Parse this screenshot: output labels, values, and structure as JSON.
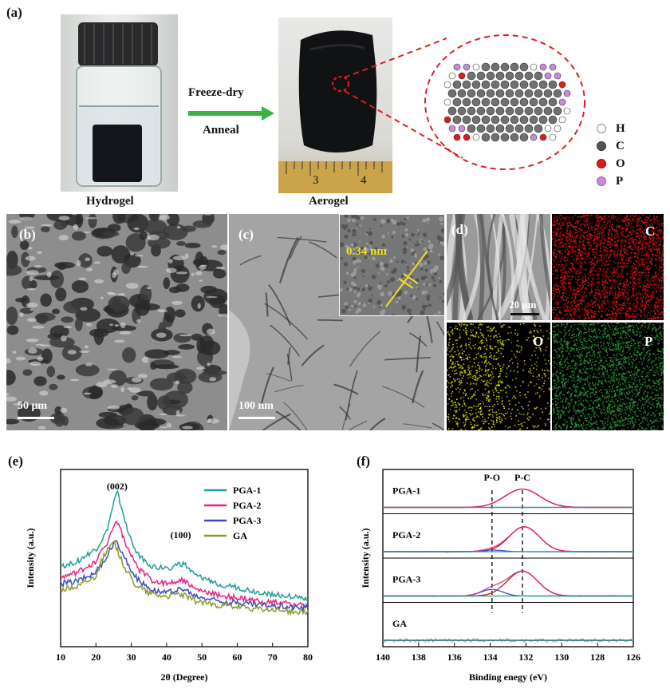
{
  "panel_a": {
    "label": "(a)",
    "hydrogel_caption": "Hydrogel",
    "aerogel_caption": "Aerogel",
    "arrow_top": "Freeze-dry",
    "arrow_bottom": "Anneal",
    "ruler_marks": [
      "3",
      "4"
    ],
    "legend": [
      {
        "symbol": "H",
        "color": "#ffffff"
      },
      {
        "symbol": "C",
        "color": "#555555"
      },
      {
        "symbol": "O",
        "color": "#e01b1b"
      },
      {
        "symbol": "P",
        "color": "#c98bd8"
      }
    ]
  },
  "panel_b": {
    "label": "(b)",
    "scale": "50 μm"
  },
  "panel_c": {
    "label": "(c)",
    "scale": "100 nm",
    "inset_spacing": "0.34 nm"
  },
  "panel_d": {
    "label": "(d)",
    "scale": "20 μm",
    "maps": [
      {
        "element": "C",
        "color": "#d11"
      },
      {
        "element": "O",
        "color": "#e5e500"
      },
      {
        "element": "P",
        "color": "#2a9a35"
      }
    ]
  },
  "panel_e": {
    "label": "(e)"
  },
  "panel_f": {
    "label": "(f)"
  },
  "chart_data": [
    {
      "id": "e",
      "type": "line",
      "title": "",
      "xlabel": "2θ (Degree)",
      "ylabel": "Intensity (a.u.)",
      "xlim": [
        10,
        80
      ],
      "xticks": [
        "10",
        "20",
        "30",
        "40",
        "50",
        "60",
        "70",
        "80"
      ],
      "peak_labels": [
        {
          "text": "(002)",
          "x": 26
        },
        {
          "text": "(100)",
          "x": 44
        }
      ],
      "series": [
        {
          "name": "PGA-1",
          "color": "#1a9e9a",
          "x": [
            10,
            15,
            20,
            23,
            25,
            26,
            27,
            29,
            32,
            36,
            40,
            43,
            45,
            48,
            55,
            65,
            80
          ],
          "y": [
            0.7,
            0.75,
            0.85,
            1.0,
            1.25,
            1.35,
            1.25,
            1.0,
            0.8,
            0.7,
            0.68,
            0.72,
            0.72,
            0.62,
            0.55,
            0.48,
            0.42
          ]
        },
        {
          "name": "PGA-2",
          "color": "#e8227e",
          "x": [
            10,
            15,
            20,
            23,
            25,
            26,
            27,
            29,
            32,
            36,
            40,
            43,
            45,
            48,
            55,
            65,
            80
          ],
          "y": [
            0.6,
            0.65,
            0.75,
            0.9,
            1.05,
            1.1,
            1.02,
            0.85,
            0.68,
            0.58,
            0.55,
            0.58,
            0.58,
            0.5,
            0.45,
            0.4,
            0.36
          ]
        },
        {
          "name": "PGA-3",
          "color": "#3b4fb5",
          "x": [
            10,
            15,
            20,
            23,
            25,
            26,
            27,
            29,
            32,
            36,
            40,
            43,
            45,
            48,
            55,
            65,
            80
          ],
          "y": [
            0.55,
            0.58,
            0.65,
            0.78,
            0.9,
            0.92,
            0.85,
            0.72,
            0.58,
            0.5,
            0.47,
            0.5,
            0.5,
            0.44,
            0.4,
            0.37,
            0.34
          ]
        },
        {
          "name": "GA",
          "color": "#8a9a2a",
          "x": [
            10,
            15,
            20,
            22,
            24,
            25,
            26,
            28,
            31,
            35,
            40,
            43,
            45,
            48,
            55,
            65,
            80
          ],
          "y": [
            0.5,
            0.53,
            0.62,
            0.78,
            0.88,
            0.9,
            0.85,
            0.7,
            0.55,
            0.47,
            0.44,
            0.46,
            0.45,
            0.4,
            0.36,
            0.33,
            0.3
          ]
        }
      ],
      "legend": "top-right"
    },
    {
      "id": "f",
      "type": "line",
      "title": "",
      "xlabel": "Binding enegy (eV)",
      "ylabel": "Intensity (a.u.)",
      "xlim": [
        140,
        126
      ],
      "xticks": [
        "140",
        "138",
        "136",
        "134",
        "132",
        "130",
        "128",
        "126"
      ],
      "reference_lines": [
        {
          "text": "P-O",
          "x": 133.9
        },
        {
          "text": "P-C",
          "x": 132.2
        }
      ],
      "series": [
        {
          "name": "PGA-1",
          "peak": 132.2,
          "width": 1.4,
          "height": 0.55,
          "po_height": 0.0
        },
        {
          "name": "PGA-2",
          "peak": 132.1,
          "width": 1.2,
          "height": 0.75,
          "po_height": 0.05
        },
        {
          "name": "PGA-3",
          "peak": 132.2,
          "width": 1.2,
          "height": 0.75,
          "po_height": 0.2
        },
        {
          "name": "GA",
          "peak": 132.0,
          "width": 3.0,
          "height": 0.0,
          "po_height": 0.0
        }
      ]
    }
  ]
}
